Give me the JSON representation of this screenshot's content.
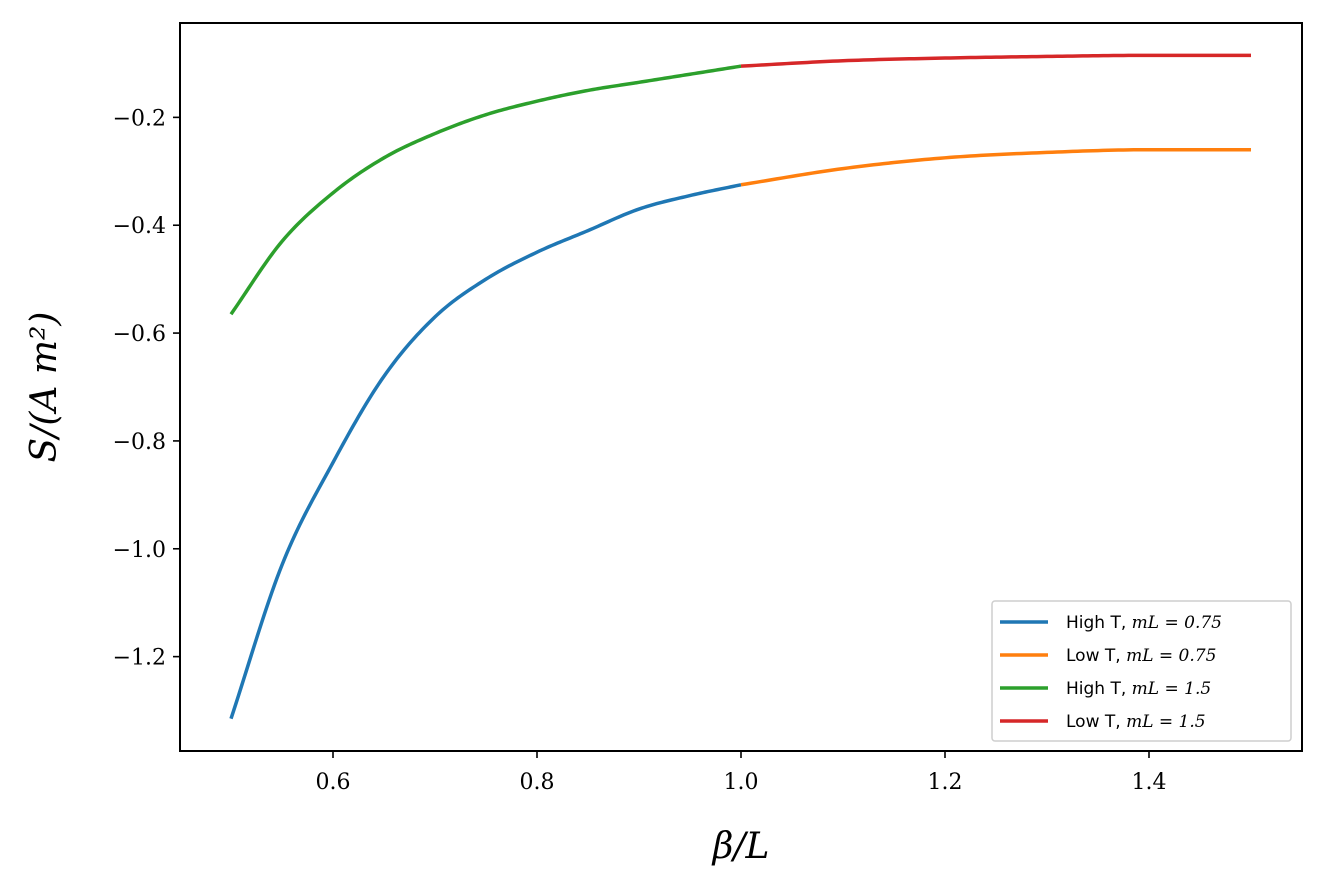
{
  "chart_data": {
    "type": "line",
    "title": "",
    "xlabel": "β/L",
    "ylabel": "S/(A m²)",
    "xlim": [
      0.45,
      1.55
    ],
    "ylim": [
      -1.375,
      -0.025
    ],
    "xticks": [
      0.6,
      0.8,
      1.0,
      1.2,
      1.4
    ],
    "xtick_labels": [
      "0.6",
      "0.8",
      "1.0",
      "1.2",
      "1.4"
    ],
    "yticks": [
      -0.2,
      -0.4,
      -0.6,
      -0.8,
      -1.0,
      -1.2
    ],
    "ytick_labels": [
      "−0.2",
      "−0.4",
      "−0.6",
      "−0.8",
      "−1.0",
      "−1.2"
    ],
    "grid": false,
    "legend_position": "lower-right",
    "series": [
      {
        "name": "High T, mL = 0.75",
        "color": "#1f77b4",
        "x": [
          0.5,
          0.55,
          0.6,
          0.65,
          0.7,
          0.75,
          0.8,
          0.85,
          0.9,
          0.95,
          1.0
        ],
        "y": [
          -1.315,
          -1.03,
          -0.84,
          -0.68,
          -0.57,
          -0.5,
          -0.45,
          -0.41,
          -0.37,
          -0.345,
          -0.325
        ]
      },
      {
        "name": "Low T, mL = 0.75",
        "color": "#ff7f0e",
        "x": [
          1.0,
          1.1,
          1.2,
          1.3,
          1.4,
          1.5
        ],
        "y": [
          -0.325,
          -0.295,
          -0.275,
          -0.265,
          -0.26,
          -0.26
        ]
      },
      {
        "name": "High T, mL = 1.5",
        "color": "#2ca02c",
        "x": [
          0.5,
          0.55,
          0.6,
          0.65,
          0.7,
          0.75,
          0.8,
          0.85,
          0.9,
          0.95,
          1.0
        ],
        "y": [
          -0.565,
          -0.43,
          -0.34,
          -0.275,
          -0.23,
          -0.195,
          -0.17,
          -0.15,
          -0.135,
          -0.12,
          -0.105
        ]
      },
      {
        "name": "Low T, mL = 1.5",
        "color": "#d62728",
        "x": [
          1.0,
          1.1,
          1.2,
          1.3,
          1.4,
          1.5
        ],
        "y": [
          -0.105,
          -0.095,
          -0.09,
          -0.087,
          -0.085,
          -0.085
        ]
      }
    ],
    "legend_labels": [
      {
        "text": "High T, ",
        "math": "mL = 0.75"
      },
      {
        "text": "Low T, ",
        "math": "mL = 0.75"
      },
      {
        "text": "High T, ",
        "math": "mL = 1.5"
      },
      {
        "text": "Low T, ",
        "math": "mL = 1.5"
      }
    ]
  }
}
